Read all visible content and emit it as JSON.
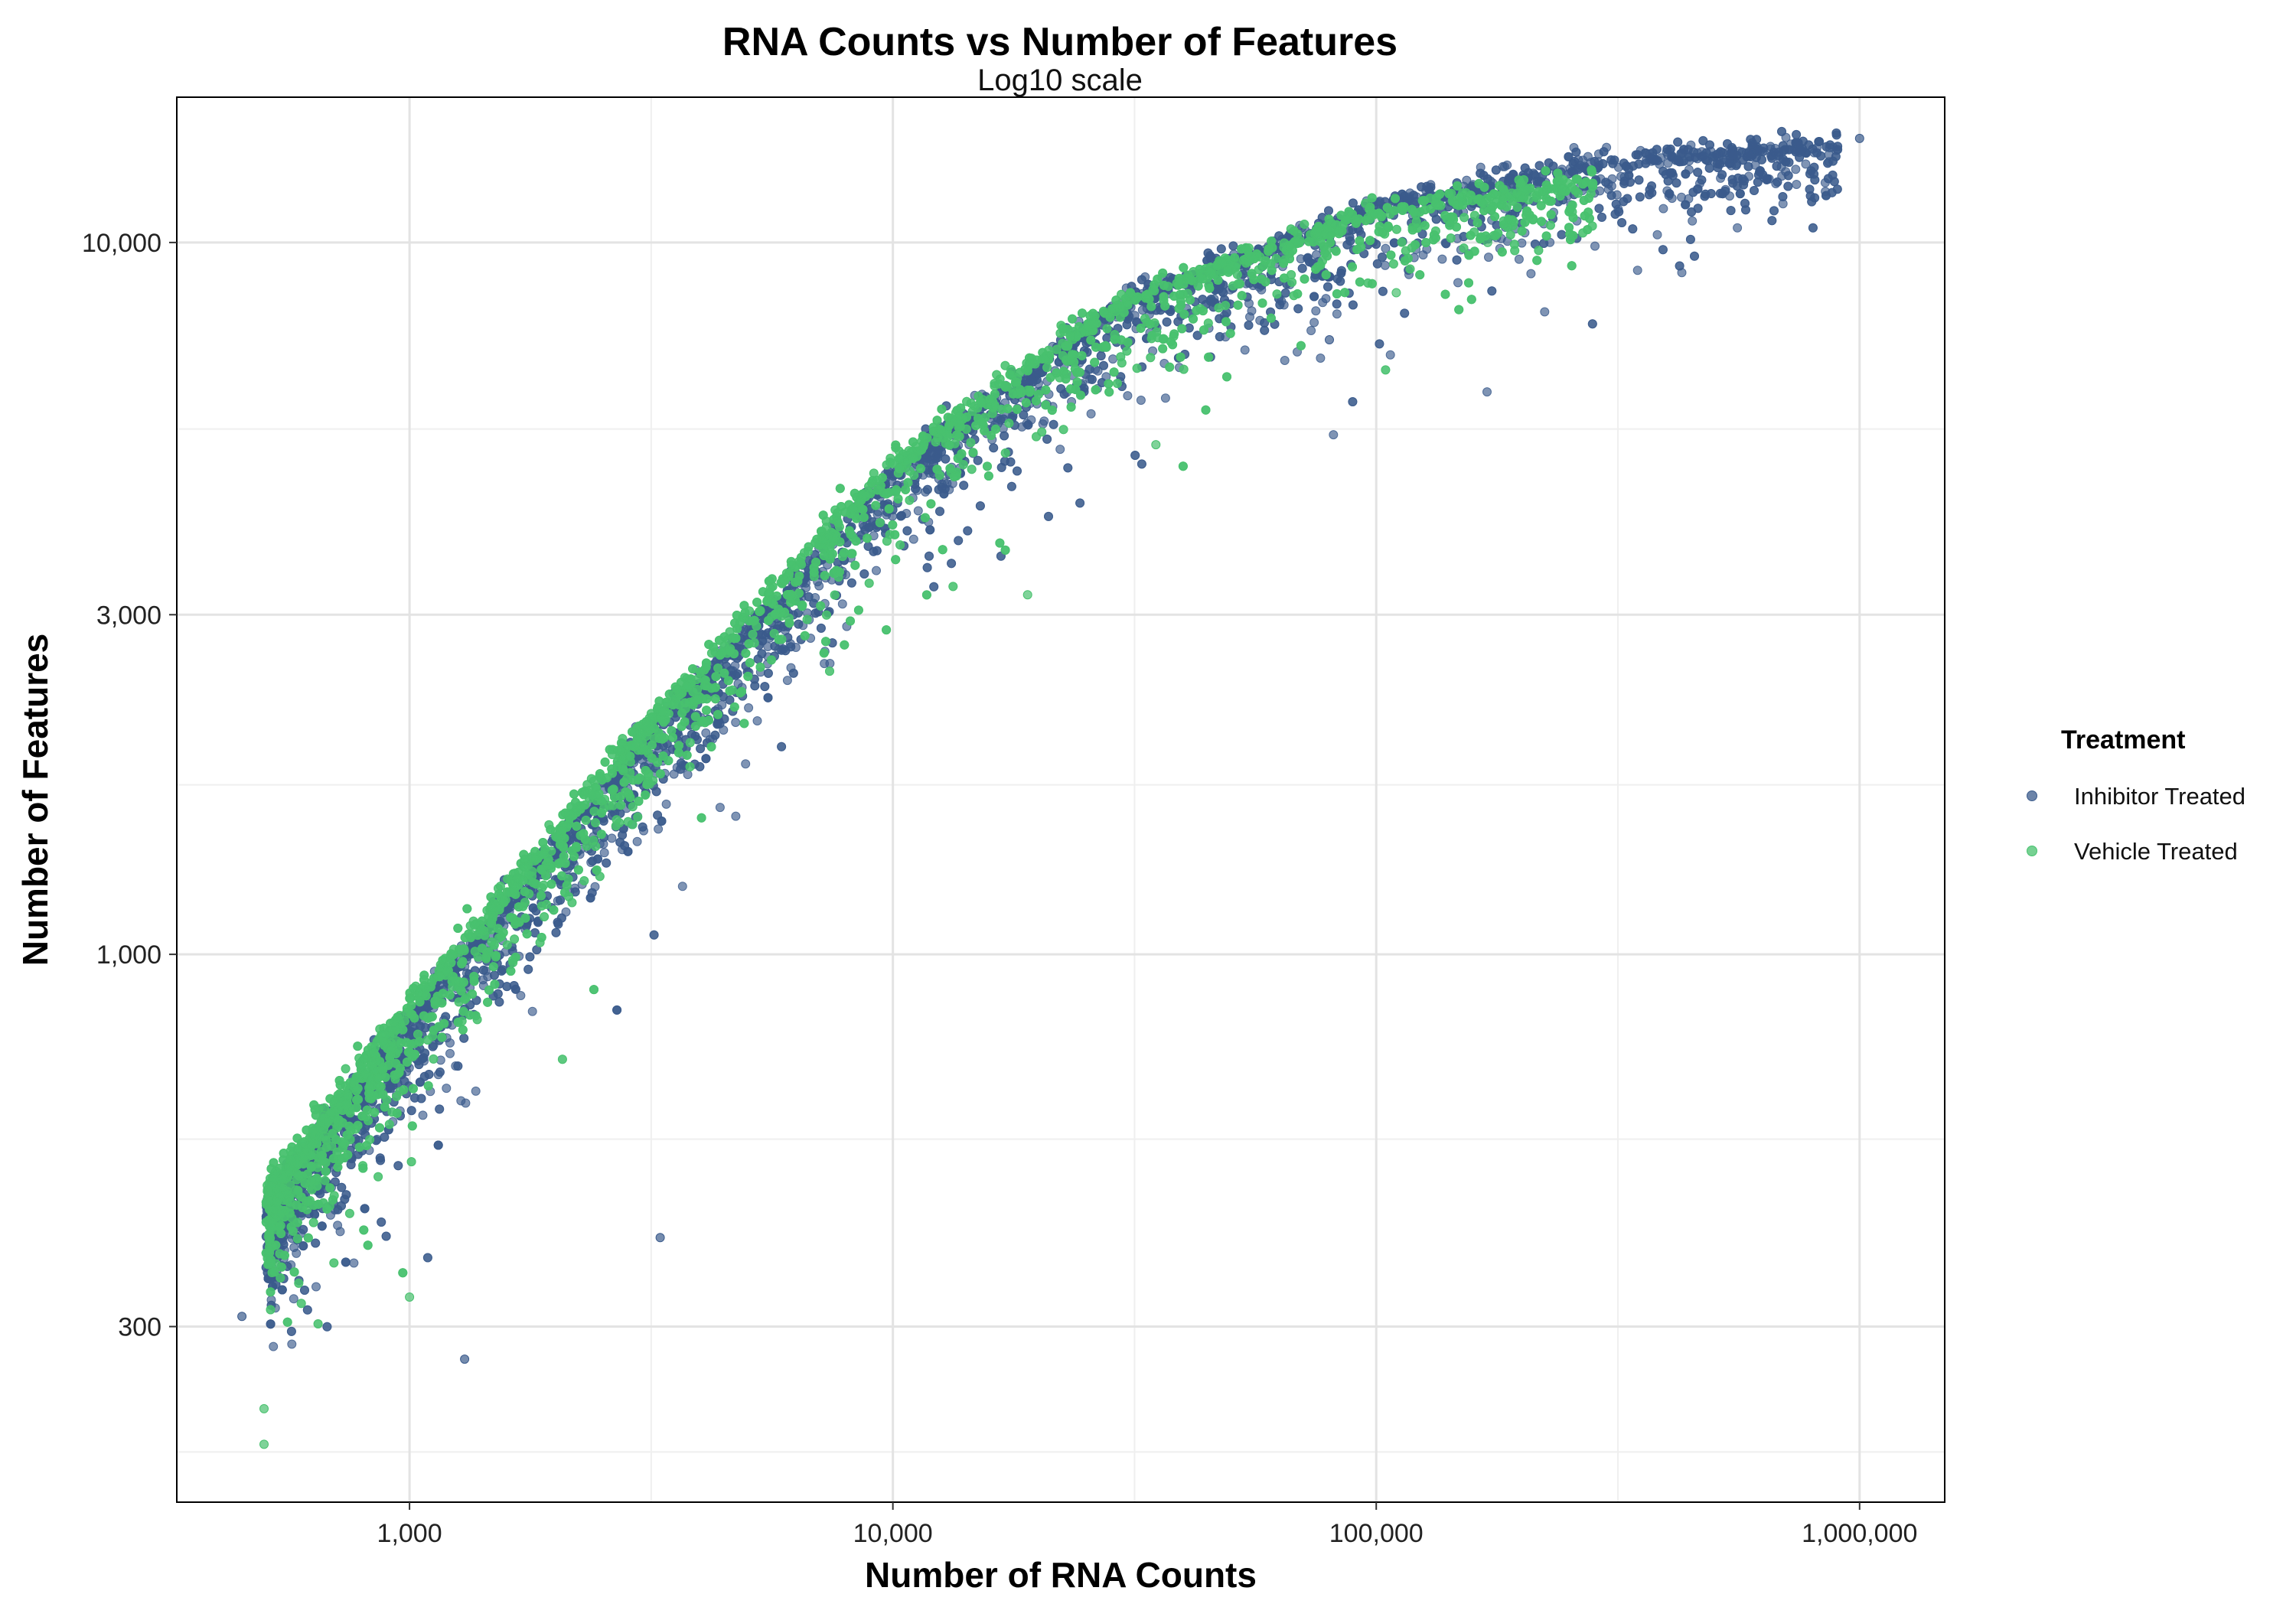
{
  "chart_data": {
    "type": "scatter",
    "title": "RNA Counts vs Number of Features",
    "subtitle": "Log10 scale",
    "xlabel": "Number of RNA Counts",
    "ylabel": "Number of Features",
    "x_scale": "log10",
    "y_scale": "log10",
    "xlim": [
      330,
      1500000
    ],
    "ylim": [
      170,
      16000
    ],
    "x_ticks": [
      1000,
      10000,
      100000,
      1000000
    ],
    "x_tick_labels": [
      "1,000",
      "10,000",
      "100,000",
      "1,000,000"
    ],
    "y_ticks": [
      300,
      1000,
      3000,
      10000
    ],
    "y_tick_labels": [
      "300",
      "1,000",
      "3,000",
      "10,000"
    ],
    "grid": true,
    "legend": {
      "title": "Treatment",
      "position": "right",
      "entries": [
        "Inhibitor Treated",
        "Vehicle Treated"
      ]
    },
    "series": [
      {
        "name": "Inhibitor Treated",
        "color": "#3b5b8c",
        "trend_x": [
          500,
          1000,
          3000,
          10000,
          30000,
          100000,
          300000,
          1000000
        ],
        "trend_y": [
          420,
          780,
          1900,
          4600,
          8000,
          11000,
          12700,
          13500
        ],
        "n_points_approx": 5500,
        "outliers": [
          [
            450,
            310
          ],
          [
            1300,
            270
          ],
          [
            3300,
            400
          ],
          [
            80000,
            7300
          ],
          [
            1000000,
            14000
          ]
        ]
      },
      {
        "name": "Vehicle Treated",
        "color": "#48c16e",
        "trend_x": [
          500,
          1000,
          3000,
          10000,
          30000,
          100000,
          300000
        ],
        "trend_y": [
          440,
          820,
          2000,
          4800,
          8100,
          10800,
          12000
        ],
        "n_points_approx": 5500,
        "outliers": [
          [
            500,
            205
          ],
          [
            500,
            230
          ],
          [
            1000,
            330
          ],
          [
            19000,
            3200
          ],
          [
            35000,
            5200
          ],
          [
            110000,
            8500
          ],
          [
            170000,
            10000
          ]
        ]
      }
    ]
  }
}
